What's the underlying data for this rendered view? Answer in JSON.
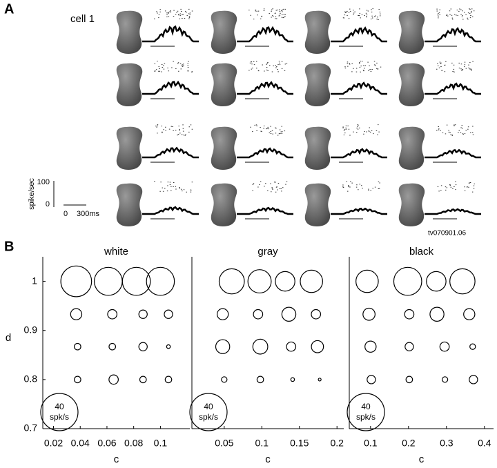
{
  "panel_a": {
    "label": "A",
    "cell": "cell 1",
    "rate_unit": "spike/sec",
    "rate_scale": [
      100,
      0
    ],
    "time_scale": [
      0,
      "300ms"
    ],
    "file_id": "tv070901.06"
  },
  "panel_b_label": "B",
  "chart_data": [
    {
      "type": "scatter",
      "title": "white",
      "xlabel": "c",
      "ylabel": "d",
      "color": "#000000",
      "x": [
        0.037,
        0.061,
        0.082,
        0.1,
        0.037,
        0.064,
        0.087,
        0.106,
        0.038,
        0.064,
        0.087,
        0.106,
        0.038,
        0.065,
        0.087,
        0.106
      ],
      "y": [
        1,
        1,
        1,
        1,
        0.933,
        0.933,
        0.933,
        0.933,
        0.867,
        0.867,
        0.867,
        0.867,
        0.8,
        0.8,
        0.8,
        0.8
      ],
      "sizes": [
        33,
        30,
        30,
        30,
        12,
        10,
        9,
        9,
        7,
        7,
        9,
        4,
        7,
        10,
        7,
        7
      ],
      "xlim": [
        0.012,
        0.122
      ],
      "xticks": [
        0.02,
        0.04,
        0.06,
        0.08,
        0.1
      ],
      "ylim": [
        0.7,
        1.05
      ],
      "yticks": [
        0.7,
        0.8,
        0.9,
        1
      ],
      "size_legend": {
        "value": 40,
        "unit": "spk/s"
      }
    },
    {
      "type": "scatter",
      "title": "gray",
      "xlabel": "c",
      "color": "#000000",
      "x": [
        0.06,
        0.097,
        0.131,
        0.166,
        0.048,
        0.095,
        0.136,
        0.172,
        0.048,
        0.098,
        0.139,
        0.174,
        0.05,
        0.098,
        0.141,
        0.177
      ],
      "y": [
        1,
        1,
        1,
        1,
        0.933,
        0.933,
        0.933,
        0.933,
        0.867,
        0.867,
        0.867,
        0.867,
        0.8,
        0.8,
        0.8,
        0.8
      ],
      "sizes": [
        27,
        25,
        21,
        24,
        12,
        10,
        15,
        10,
        15,
        16,
        10,
        13,
        6,
        7,
        4,
        3
      ],
      "xlim": [
        0.007,
        0.209
      ],
      "xticks": [
        0.05,
        0.1,
        0.15,
        0.2
      ],
      "ylim": [
        0.7,
        1.05
      ],
      "size_legend": {
        "value": 40,
        "unit": "spk/s"
      }
    },
    {
      "type": "scatter",
      "title": "black",
      "xlabel": "c",
      "color": "#000000",
      "x": [
        0.091,
        0.198,
        0.273,
        0.342,
        0.096,
        0.202,
        0.275,
        0.36,
        0.1,
        0.202,
        0.295,
        0.369,
        0.102,
        0.202,
        0.296,
        0.371
      ],
      "y": [
        1,
        1,
        1,
        1,
        0.933,
        0.933,
        0.933,
        0.933,
        0.867,
        0.867,
        0.867,
        0.867,
        0.8,
        0.8,
        0.8,
        0.8
      ],
      "sizes": [
        24,
        30,
        21,
        27,
        13,
        10,
        15,
        12,
        12,
        9,
        10,
        6,
        9,
        7,
        6,
        9
      ],
      "xlim": [
        0.044,
        0.424
      ],
      "xticks": [
        0.1,
        0.2,
        0.3,
        0.4
      ],
      "ylim": [
        0.7,
        1.05
      ],
      "size_legend": {
        "value": 40,
        "unit": "spk/s"
      }
    }
  ]
}
